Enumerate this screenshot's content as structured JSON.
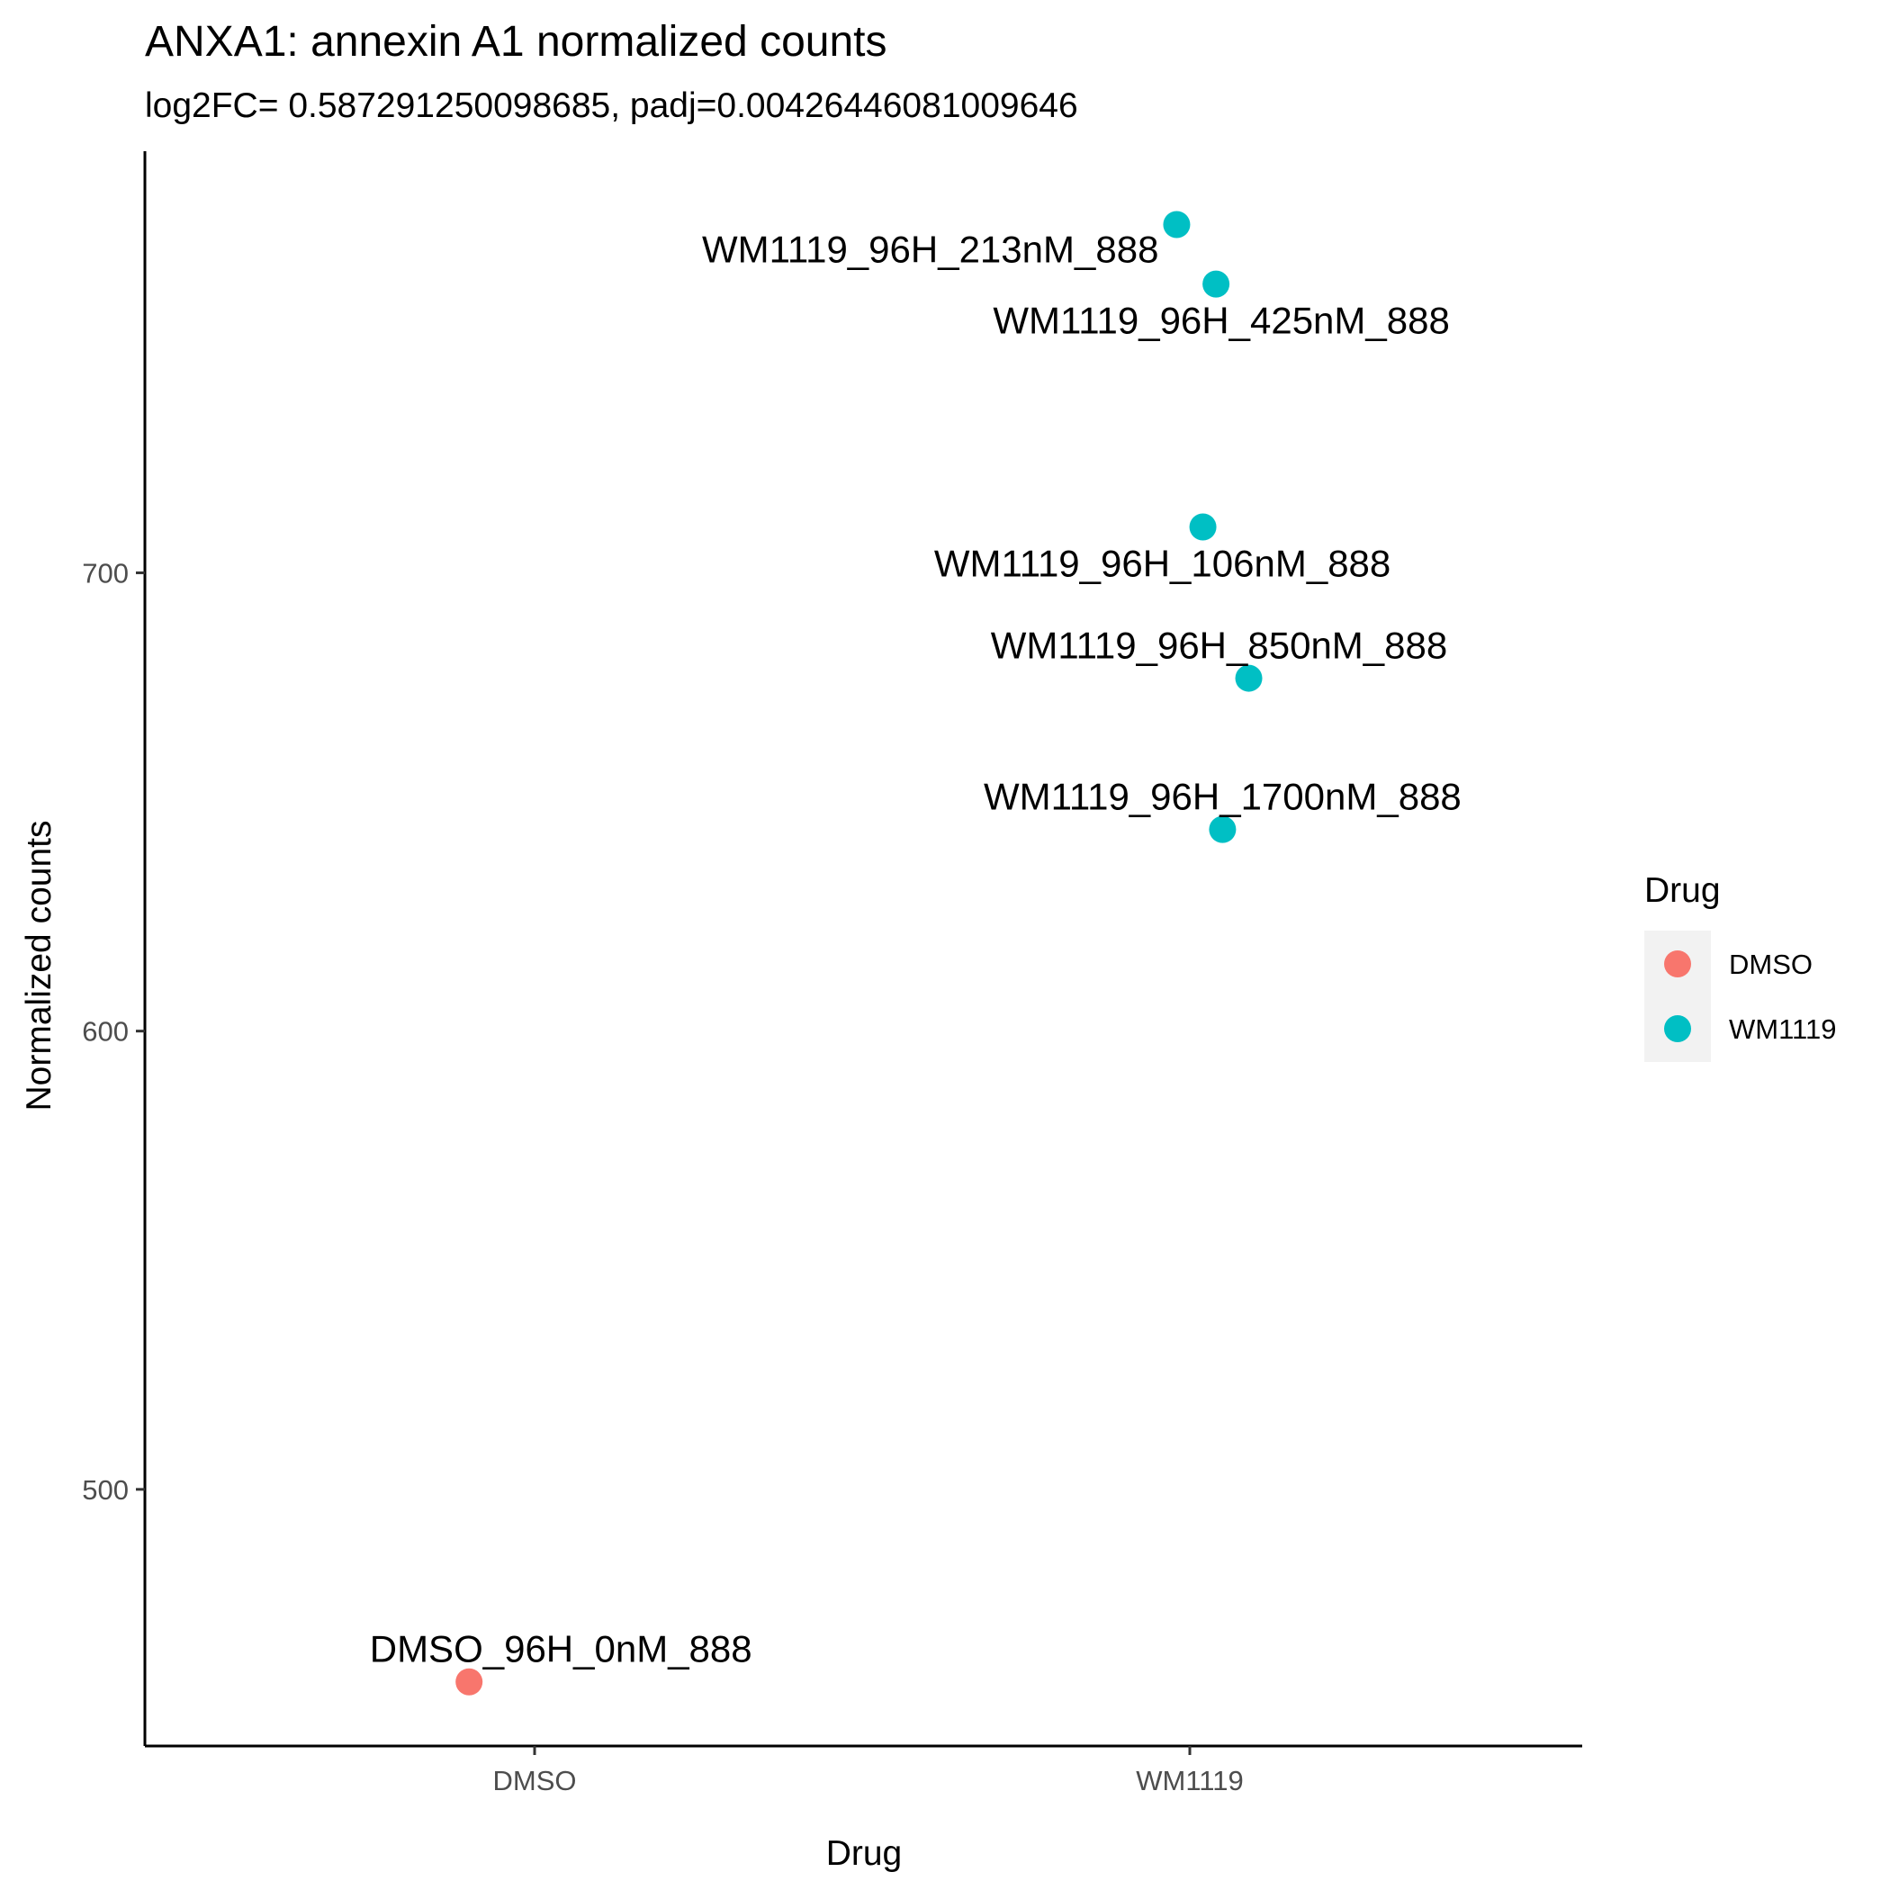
{
  "chart_data": {
    "type": "scatter",
    "title": "ANXA1: annexin A1 normalized counts",
    "subtitle": "log2FC= 0.587291250098685, padj=0.00426446081009646",
    "xlabel": "Drug",
    "ylabel": "Normalized counts",
    "categories": [
      "DMSO",
      "WM1119"
    ],
    "y_ticks": [
      500,
      600,
      700
    ],
    "ylim": [
      444,
      792
    ],
    "grid": false,
    "series": [
      {
        "name": "DMSO",
        "color": "#F8766D",
        "points": [
          {
            "category": "DMSO",
            "jitter": -0.1,
            "y": 458,
            "label": "DMSO_96H_0nM_888"
          }
        ]
      },
      {
        "name": "WM1119",
        "color": "#00BFC4",
        "points": [
          {
            "category": "WM1119",
            "jitter": -0.02,
            "y": 776,
            "label": "WM1119_96H_213nM_888"
          },
          {
            "category": "WM1119",
            "jitter": 0.04,
            "y": 763,
            "label": "WM1119_96H_425nM_888"
          },
          {
            "category": "WM1119",
            "jitter": 0.02,
            "y": 710,
            "label": "WM1119_96H_106nM_888"
          },
          {
            "category": "WM1119",
            "jitter": 0.09,
            "y": 677,
            "label": "WM1119_96H_850nM_888"
          },
          {
            "category": "WM1119",
            "jitter": 0.05,
            "y": 644,
            "label": "WM1119_96H_1700nM_888"
          }
        ]
      }
    ],
    "legend": {
      "title": "Drug",
      "position": "right",
      "entries": [
        {
          "label": "DMSO",
          "color": "#F8766D"
        },
        {
          "label": "WM1119",
          "color": "#00BFC4"
        }
      ]
    }
  }
}
